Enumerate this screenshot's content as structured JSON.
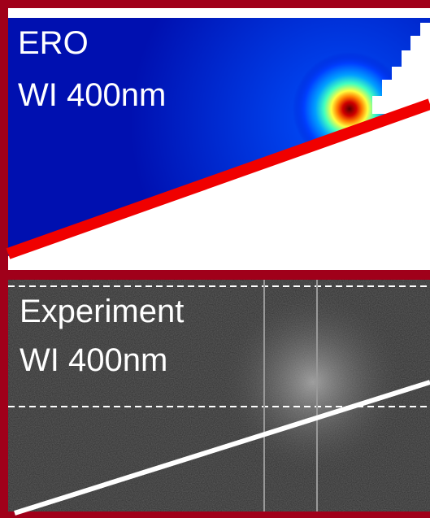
{
  "panels": [
    {
      "lines": [
        "ERO",
        "WI 400nm"
      ]
    },
    {
      "lines": [
        "Experiment",
        "WI 400nm"
      ]
    }
  ]
}
